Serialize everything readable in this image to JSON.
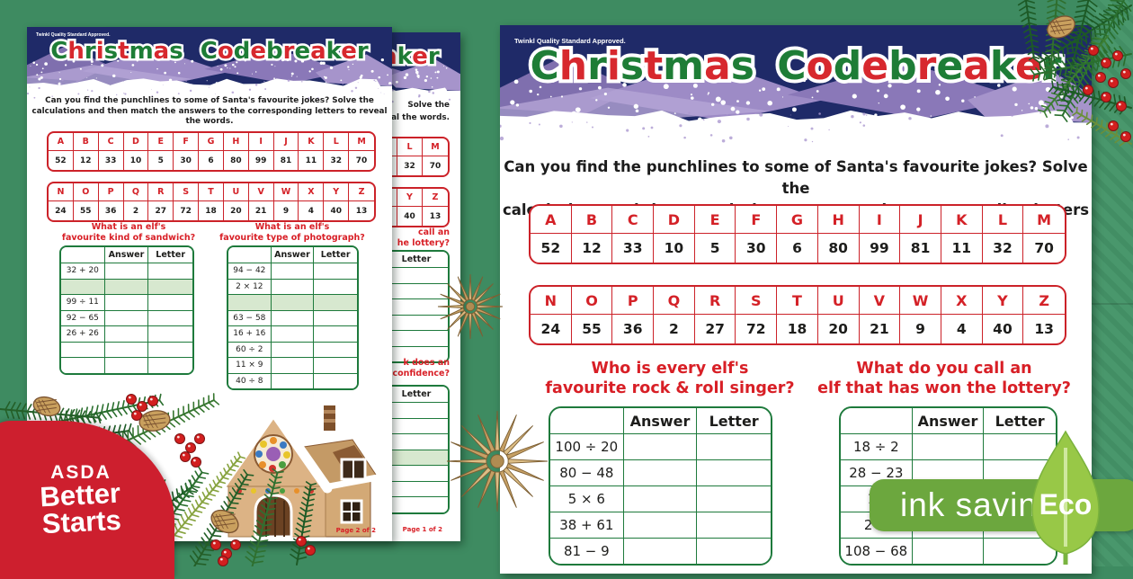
{
  "colors": {
    "background_green": "#3e8b61",
    "title_green": "#1e7d36",
    "title_red": "#d7282e",
    "code_table_red": "#cc2229",
    "answer_table_green": "#1e7a3c",
    "shaded_row_green": "#d7e8cf",
    "question_red": "#d81f26",
    "header_navy": "#1f2a68",
    "asda_red": "#cd1f2e",
    "ink_badge_green": "#6ca73e",
    "leaf_green": "#98c847"
  },
  "shared": {
    "approval": "Twinkl Quality Standard Approved.",
    "title": "Christmas Codebreaker",
    "intro_line1": "Can you find the punchlines to some of Santa's favourite jokes? Solve the",
    "intro_line2": "calculations and then match the answers to the corresponding letters to reveal the words.",
    "answer_header": "Answer",
    "letter_header": "Letter",
    "code_row1": {
      "letters": [
        "A",
        "B",
        "C",
        "D",
        "E",
        "F",
        "G",
        "H",
        "I",
        "J",
        "K",
        "L",
        "M"
      ],
      "values": [
        "52",
        "12",
        "33",
        "10",
        "5",
        "30",
        "6",
        "80",
        "99",
        "81",
        "11",
        "32",
        "70"
      ]
    },
    "code_row2": {
      "letters": [
        "N",
        "O",
        "P",
        "Q",
        "R",
        "S",
        "T",
        "U",
        "V",
        "W",
        "X",
        "Y",
        "Z"
      ],
      "values": [
        "24",
        "55",
        "36",
        "2",
        "27",
        "72",
        "18",
        "20",
        "21",
        "9",
        "4",
        "40",
        "13"
      ]
    }
  },
  "right_page": {
    "q1": {
      "line1": "Who is every elf's",
      "line2": "favourite rock & roll singer?",
      "problems": [
        "100 ÷ 20",
        "80 − 48",
        "5 × 6",
        "38 + 61",
        "81 − 9"
      ]
    },
    "q2": {
      "line1": "What do you call an",
      "line2": "elf that has won the lottery?",
      "problems": [
        "18 ÷ 2",
        "28 − 23",
        "11",
        "2 ×",
        "108 − 68"
      ]
    }
  },
  "front_page": {
    "q1": {
      "line1": "What is an elf's",
      "line2": "favourite kind of sandwich?",
      "problems": [
        "32 + 20",
        "",
        "99 ÷ 11",
        "92 − 65",
        "26 + 26",
        "",
        ""
      ],
      "shaded_row": 1
    },
    "q2": {
      "line1": "What is an elf's",
      "line2": "favourite type of photograph?",
      "problems": [
        "94 − 42",
        "2 × 12",
        "",
        "63 − 58",
        "16 + 16",
        "60 ÷ 2",
        "11 × 9",
        "40 ÷ 8"
      ],
      "shaded_row": 2
    },
    "footer": "Page 2 of 2"
  },
  "back_page": {
    "intro_frag1": "Solve the",
    "intro_frag2": "reveal the words.",
    "code_frag1": {
      "letters": [
        "K",
        "L",
        "M"
      ],
      "values": [
        "11",
        "32",
        "70"
      ]
    },
    "code_frag2": {
      "letters": [
        "X",
        "Y",
        "Z"
      ],
      "values": [
        "4",
        "40",
        "13"
      ]
    },
    "q1_frag1": "call an",
    "q1_frag2": "he lottery?",
    "q2_frag1": "k does an",
    "q2_frag2": "confidence?",
    "frag_table1_rows": 6,
    "frag_table2_rows": 7,
    "frag_table2_shaded": 3,
    "footer": "Page 1 of 2"
  },
  "badges": {
    "asda_brand": "ASDA",
    "asda_line1": "Better",
    "asda_line2": "Starts",
    "ink_saving": "ink saving",
    "eco": "Eco"
  }
}
